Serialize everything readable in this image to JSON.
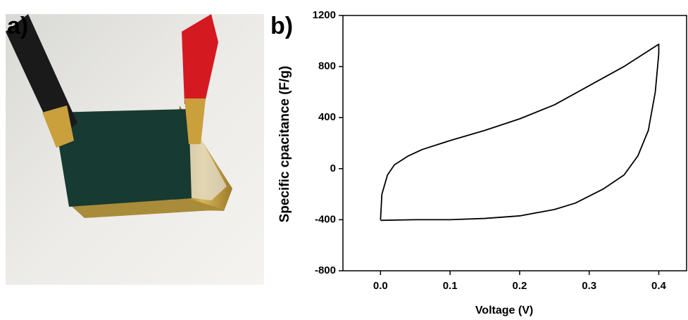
{
  "panel_a": {
    "label": "a)"
  },
  "chart_data": {
    "type": "line",
    "panel_label": "b)",
    "x_label": "Voltage (V)",
    "y_label": "Specific cpacitance (F/g)",
    "x": [
      0,
      0.002,
      0.01,
      0.02,
      0.04,
      0.06,
      0.1,
      0.15,
      0.2,
      0.25,
      0.3,
      0.35,
      0.4,
      0.4,
      0.395,
      0.385,
      0.37,
      0.35,
      0.32,
      0.28,
      0.25,
      0.2,
      0.15,
      0.1,
      0.05,
      0
    ],
    "series": [
      {
        "color": "#000000",
        "values": [
          -400,
          -200,
          -50,
          30,
          100,
          150,
          220,
          300,
          390,
          500,
          650,
          800,
          975,
          900,
          600,
          300,
          100,
          -50,
          -160,
          -270,
          -320,
          -370,
          -390,
          -400,
          -400,
          -405
        ]
      }
    ],
    "xlim": [
      -0.054,
      0.44
    ],
    "ylim": [
      -800,
      1200
    ],
    "xticks": [
      {
        "value": 0,
        "label": "0.0"
      },
      0.1,
      0.2,
      0.3,
      0.4
    ],
    "yticks": [
      -800,
      -400,
      0,
      400,
      800,
      1200
    ]
  }
}
